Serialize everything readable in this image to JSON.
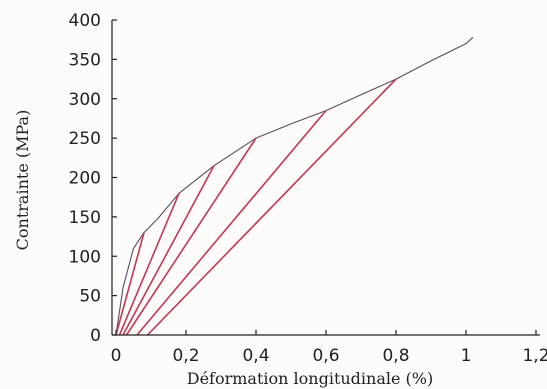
{
  "chart_data": {
    "type": "line",
    "title": "",
    "xlabel": "Déformation longitudinale (%)",
    "ylabel": "Contrainte (MPa)",
    "xlim": [
      0,
      1.2
    ],
    "ylim": [
      0,
      400
    ],
    "x_tick_labels": [
      "0",
      "0,2",
      "0,4",
      "0,6",
      "0,8",
      "1",
      "1,2"
    ],
    "x_tick_values": [
      0,
      0.2,
      0.4,
      0.6,
      0.8,
      1.0,
      1.2
    ],
    "y_tick_labels": [
      "0",
      "50",
      "100",
      "150",
      "200",
      "250",
      "300",
      "350",
      "400"
    ],
    "y_tick_values": [
      0,
      50,
      100,
      150,
      200,
      250,
      300,
      350,
      400
    ],
    "grid": false,
    "legend": "none",
    "colors": {
      "envelope": "#5a4a5e",
      "unloading": "#5a4a5e",
      "reloading": "#c23a58"
    },
    "series": [
      {
        "role": "envelope",
        "x": [
          0,
          0.02,
          0.05,
          0.08,
          0.12,
          0.18,
          0.28,
          0.4,
          0.5,
          0.6,
          0.7,
          0.8,
          0.9,
          1.0,
          1.02
        ],
        "y": [
          0,
          60,
          110,
          130,
          148,
          180,
          215,
          250,
          268,
          285,
          305,
          325,
          348,
          370,
          378
        ]
      },
      {
        "role": "unloading",
        "x": [
          0.08,
          0.0
        ],
        "y": [
          130,
          0
        ]
      },
      {
        "role": "reloading",
        "x": [
          0.0,
          0.08
        ],
        "y": [
          0,
          130
        ]
      },
      {
        "role": "unloading",
        "x": [
          0.18,
          0.01
        ],
        "y": [
          180,
          0
        ]
      },
      {
        "role": "reloading",
        "x": [
          0.01,
          0.18
        ],
        "y": [
          0,
          180
        ]
      },
      {
        "role": "unloading",
        "x": [
          0.28,
          0.02
        ],
        "y": [
          215,
          0
        ]
      },
      {
        "role": "reloading",
        "x": [
          0.02,
          0.28
        ],
        "y": [
          0,
          215
        ]
      },
      {
        "role": "unloading",
        "x": [
          0.4,
          0.03
        ],
        "y": [
          250,
          0
        ]
      },
      {
        "role": "reloading",
        "x": [
          0.03,
          0.4
        ],
        "y": [
          0,
          250
        ]
      },
      {
        "role": "unloading",
        "x": [
          0.6,
          0.06
        ],
        "y": [
          285,
          0
        ]
      },
      {
        "role": "reloading",
        "x": [
          0.06,
          0.6
        ],
        "y": [
          0,
          285
        ]
      },
      {
        "role": "unloading",
        "x": [
          0.8,
          0.09
        ],
        "y": [
          325,
          0
        ]
      },
      {
        "role": "reloading",
        "x": [
          0.09,
          0.8
        ],
        "y": [
          0,
          325
        ]
      }
    ]
  }
}
